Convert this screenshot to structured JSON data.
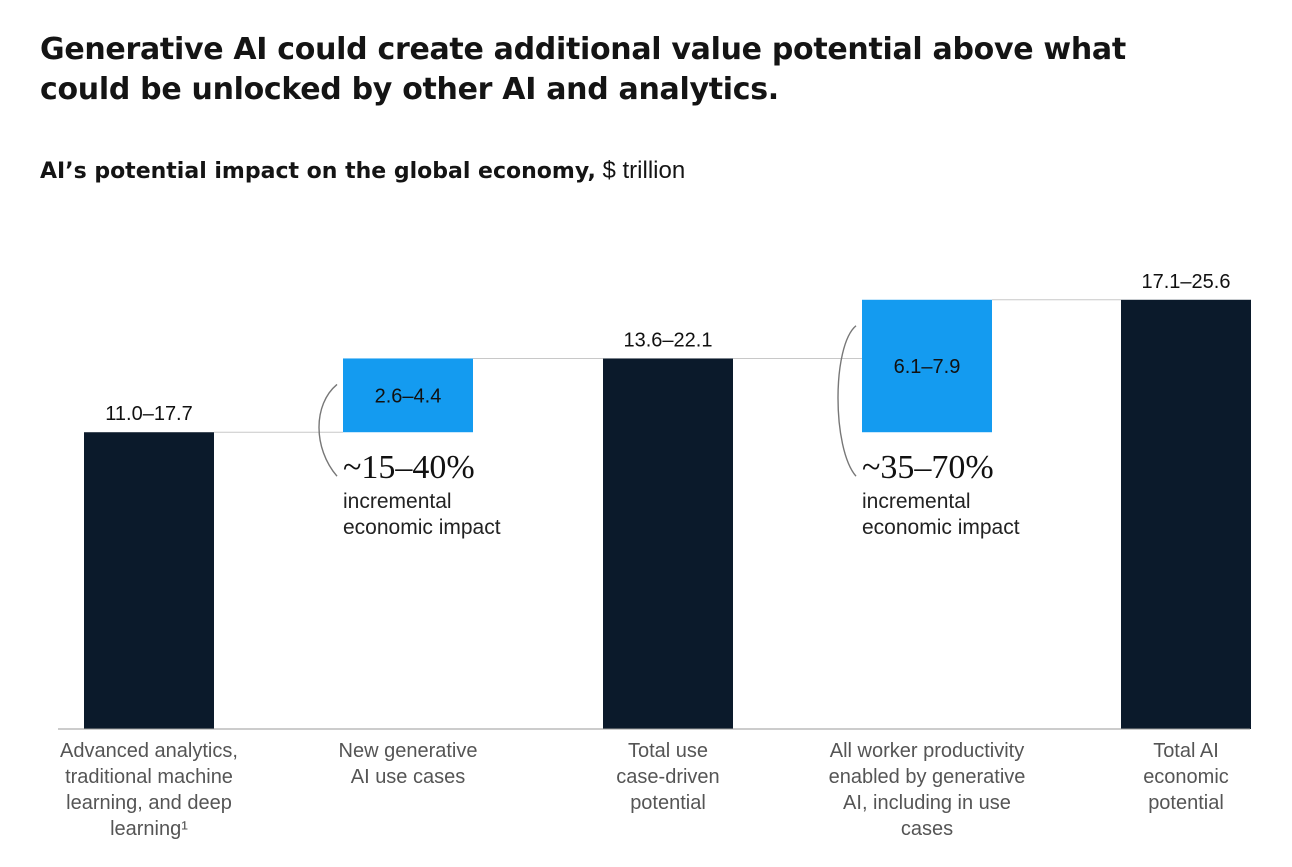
{
  "header": {
    "title": "Generative AI could create additional value potential above what could be unlocked by other AI and analytics.",
    "subtitle_bold": "AI’s potential impact on the global economy,",
    "subtitle_unit": "$ trillion"
  },
  "colors": {
    "dark_bar": "#0b1a2b",
    "light_bar": "#149bf0",
    "connector": "#c8c8c8",
    "axis": "#9a9a9a"
  },
  "chart_data": {
    "type": "bar",
    "ylim": [
      0,
      26.6
    ],
    "bars": [
      {
        "kind": "total",
        "low": 11.0,
        "high": 17.7,
        "label": "11.0–17.7",
        "category_lines": [
          "Advanced analytics,",
          "traditional machine",
          "learning, and deep",
          "learning¹"
        ]
      },
      {
        "kind": "increment",
        "low": 2.6,
        "high": 4.4,
        "base": 17.7,
        "label": "2.6–4.4",
        "category_lines": [
          "New generative",
          "AI use cases"
        ]
      },
      {
        "kind": "total",
        "low": 13.6,
        "high": 22.1,
        "label": "13.6–22.1",
        "category_lines": [
          "Total use",
          "case-driven",
          "potential"
        ]
      },
      {
        "kind": "increment",
        "low": 6.1,
        "high": 7.9,
        "base": 17.7,
        "label": "6.1–7.9",
        "category_lines": [
          "All worker productivity",
          "enabled by generative",
          "AI, including in use",
          "cases"
        ]
      },
      {
        "kind": "total",
        "low": 17.1,
        "high": 25.6,
        "label": "17.1–25.6",
        "category_lines": [
          "Total AI",
          "economic",
          "potential"
        ]
      }
    ],
    "annotations": [
      {
        "bar": 1,
        "percent": "~15–40%",
        "lines": [
          "incremental",
          "economic impact"
        ]
      },
      {
        "bar": 3,
        "percent": "~35–70%",
        "lines": [
          "incremental",
          "economic impact"
        ]
      }
    ]
  }
}
